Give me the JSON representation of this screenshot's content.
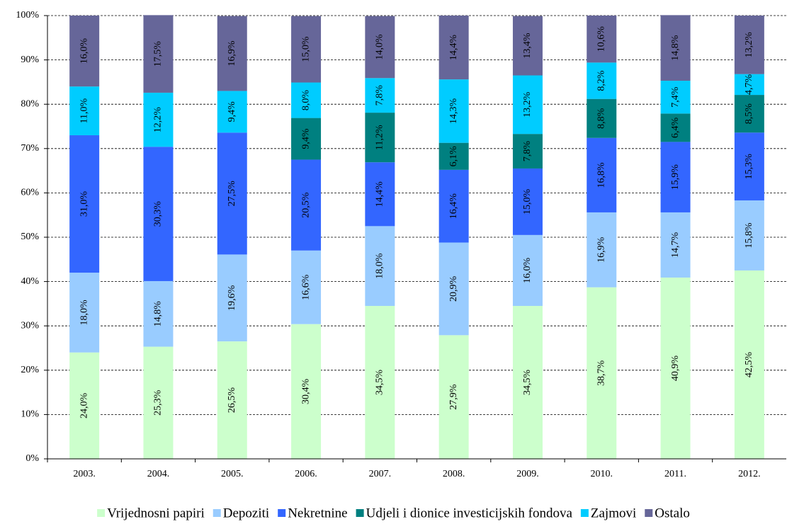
{
  "chart_data": {
    "type": "stacked_bar",
    "categories": [
      "2003.",
      "2004.",
      "2005.",
      "2006.",
      "2007.",
      "2008.",
      "2009.",
      "2010.",
      "2011.",
      "2012."
    ],
    "series": [
      {
        "name": "Vrijednosni papiri",
        "color": "#ccffcc",
        "values": [
          24.0,
          25.3,
          26.5,
          30.4,
          34.5,
          27.9,
          34.5,
          38.7,
          40.9,
          42.5
        ],
        "value_labels": [
          "24,0%",
          "25,3%",
          "26,5%",
          "30,4%",
          "34,5%",
          "27,9%",
          "34,5%",
          "38,7%",
          "40,9%",
          "42,5%"
        ]
      },
      {
        "name": "Depoziti",
        "color": "#99ccff",
        "values": [
          18.0,
          14.8,
          19.6,
          16.6,
          18.0,
          20.9,
          16.0,
          16.9,
          14.7,
          15.8
        ],
        "value_labels": [
          "18,0%",
          "14,8%",
          "19,6%",
          "16,6%",
          "18,0%",
          "20,9%",
          "16,0%",
          "16,9%",
          "14,7%",
          "15,8%"
        ]
      },
      {
        "name": "Nekretnine",
        "color": "#3366ff",
        "values": [
          31.0,
          30.3,
          27.5,
          20.5,
          14.4,
          16.4,
          15.0,
          16.8,
          15.9,
          15.3
        ],
        "value_labels": [
          "31,0%",
          "30,3%",
          "27,5%",
          "20,5%",
          "14,4%",
          "16,4%",
          "15,0%",
          "16,8%",
          "15,9%",
          "15,3%"
        ]
      },
      {
        "name": "Udjeli i dionice investicijskih fondova",
        "color": "#008080",
        "values": [
          null,
          null,
          null,
          9.4,
          11.2,
          6.1,
          7.8,
          8.8,
          6.4,
          8.5
        ],
        "value_labels": [
          null,
          null,
          null,
          "9,4%",
          "11,2%",
          "6,1%",
          "7,8%",
          "8,8%",
          "6,4%",
          "8,5%"
        ]
      },
      {
        "name": "Zajmovi",
        "color": "#00ccff",
        "values": [
          11.0,
          12.2,
          9.4,
          8.0,
          7.8,
          14.3,
          13.2,
          8.2,
          7.4,
          4.7
        ],
        "value_labels": [
          "11,0%",
          "12,2%",
          "9,4%",
          "8,0%",
          "7,8%",
          "14,3%",
          "13,2%",
          "8,2%",
          "7,4%",
          "4,7%"
        ]
      },
      {
        "name": "Ostalo",
        "color": "#666699",
        "values": [
          16.0,
          17.5,
          16.9,
          15.0,
          14.0,
          14.4,
          13.4,
          10.6,
          14.8,
          13.2
        ],
        "value_labels": [
          "16,0%",
          "17,5%",
          "16,9%",
          "15,0%",
          "14,0%",
          "14,4%",
          "13,4%",
          "10,6%",
          "14,8%",
          "13,2%"
        ]
      }
    ],
    "ylim": [
      0,
      100
    ],
    "yticks": [
      {
        "value": 0,
        "label": "0%"
      },
      {
        "value": 10,
        "label": "10%"
      },
      {
        "value": 20,
        "label": "20%"
      },
      {
        "value": 30,
        "label": "30%"
      },
      {
        "value": 40,
        "label": "40%"
      },
      {
        "value": 50,
        "label": "50%"
      },
      {
        "value": 60,
        "label": "60%"
      },
      {
        "value": 70,
        "label": "70%"
      },
      {
        "value": 80,
        "label": "80%"
      },
      {
        "value": 90,
        "label": "90%"
      },
      {
        "value": 100,
        "label": "100%"
      }
    ],
    "grid": true,
    "legend": "bottom"
  }
}
